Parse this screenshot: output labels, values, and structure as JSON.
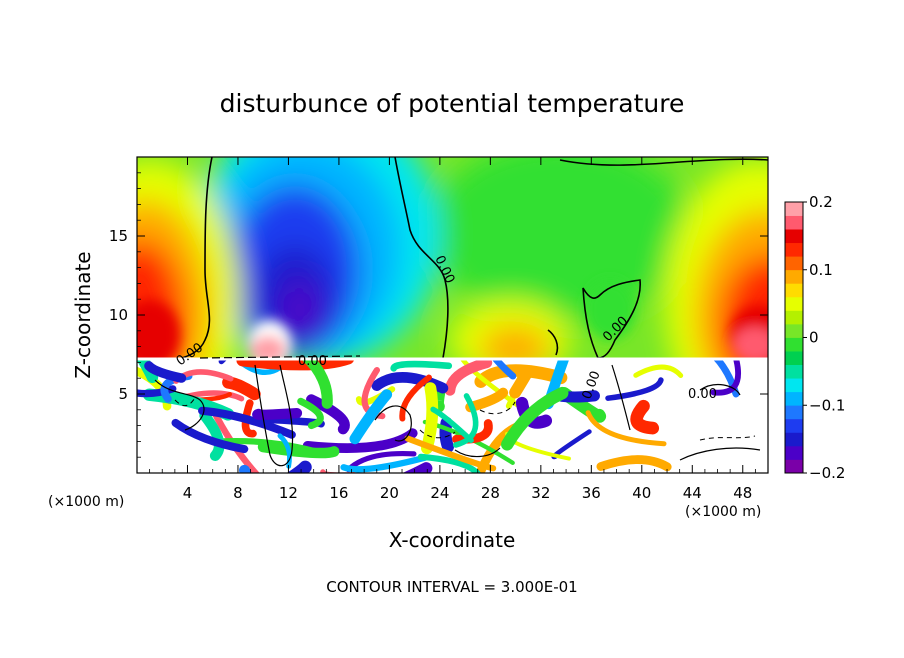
{
  "chart_data": {
    "type": "heatmap",
    "title": "disturbunce of potential temperature",
    "xlabel": "X-coordinate",
    "ylabel": "Z-coordinate",
    "x_unit_left": "(×1000 m)",
    "x_unit_right": "(×1000 m)",
    "footer": "CONTOUR INTERVAL = 3.000E-01",
    "xlim": [
      0,
      50
    ],
    "ylim": [
      0,
      20
    ],
    "x_ticks": [
      4,
      8,
      12,
      16,
      20,
      24,
      28,
      32,
      36,
      40,
      44,
      48
    ],
    "y_ticks": [
      5,
      10,
      15
    ],
    "colorbar": {
      "min": -0.2,
      "max": 0.2,
      "tick_values": [
        0.2,
        0.1,
        0,
        -0.1,
        -0.2
      ],
      "tick_labels": [
        "0.2",
        "0.1",
        "0",
        "−0.1",
        "−0.2"
      ],
      "colors": [
        "#7a00a8",
        "#4b00c8",
        "#1a1acc",
        "#1e3cf0",
        "#1e78ff",
        "#00b4ff",
        "#00e6f0",
        "#00e0a0",
        "#00d050",
        "#30e030",
        "#78e628",
        "#b4f000",
        "#e6ff00",
        "#ffdc00",
        "#ffaa00",
        "#ff6400",
        "#ff2800",
        "#e60000",
        "#ff5a6e",
        "#ffa0a8"
      ]
    },
    "contour_labels": [
      "0.00",
      "0.00",
      "0.00",
      "0.00",
      "0.00",
      "0.00"
    ],
    "series": [
      {
        "kind": "blob",
        "x": 14.5,
        "z": 14.5,
        "rx": 6.5,
        "rz": 6.0,
        "value": -0.17
      },
      {
        "kind": "blob",
        "x": 15.0,
        "z": 14.0,
        "rx": 10.0,
        "rz": 9.0,
        "value": -0.09
      },
      {
        "kind": "blob",
        "x": 2.0,
        "z": 11.0,
        "rx": 5.0,
        "rz": 7.0,
        "value": 0.16
      },
      {
        "kind": "blob",
        "x": 47.5,
        "z": 10.5,
        "rx": 5.0,
        "rz": 6.0,
        "value": 0.17
      },
      {
        "kind": "blob",
        "x": 29.5,
        "z": 9.0,
        "rx": 3.5,
        "rz": 2.5,
        "value": 0.08
      },
      {
        "kind": "blob",
        "x": 36.5,
        "z": 9.5,
        "rx": 3.0,
        "rz": 3.0,
        "value": 0.0
      }
    ]
  }
}
